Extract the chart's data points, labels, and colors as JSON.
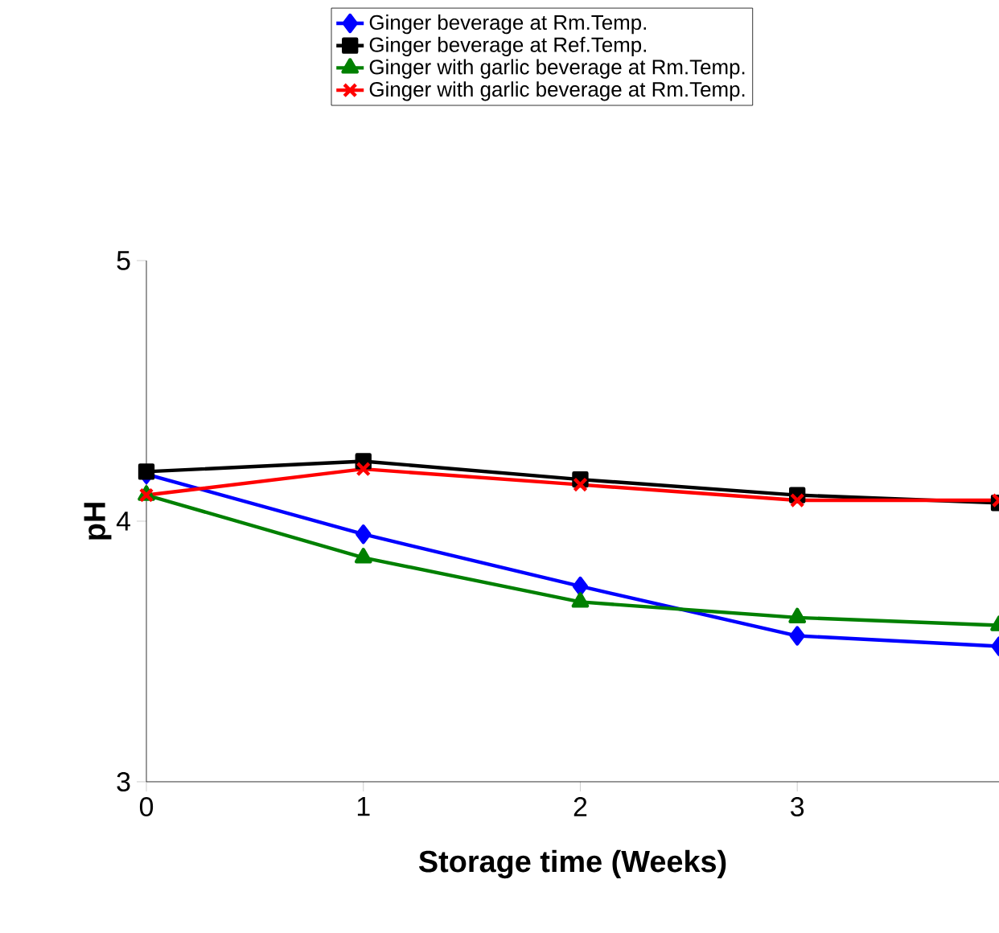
{
  "chart_data": {
    "type": "line",
    "xlabel": "Storage time (Weeks)",
    "ylabel": "pH",
    "x": [
      0,
      1,
      2,
      3,
      3.93
    ],
    "xlim": [
      0,
      3.93
    ],
    "xticks": [
      0,
      1,
      2,
      3
    ],
    "ylim": [
      3,
      5
    ],
    "yticks": [
      3,
      4,
      5
    ],
    "legend": "top",
    "grid": false,
    "series": [
      {
        "name": "Ginger beverage at Rm.Temp.",
        "color": "#0000ff",
        "marker": "diamond",
        "values": [
          4.18,
          3.95,
          3.75,
          3.56,
          3.52
        ]
      },
      {
        "name": "Ginger beverage at Ref.Temp.",
        "color": "#000000",
        "marker": "square",
        "values": [
          4.19,
          4.23,
          4.16,
          4.1,
          4.07
        ]
      },
      {
        "name": "Ginger with garlic beverage at Rm.Temp.",
        "color": "#008000",
        "marker": "triangle",
        "values": [
          4.1,
          3.86,
          3.69,
          3.63,
          3.6
        ]
      },
      {
        "name": "Ginger with garlic beverage at Rm.Temp.",
        "color": "#ff0000",
        "marker": "cross",
        "values": [
          4.1,
          4.2,
          4.14,
          4.08,
          4.08
        ]
      }
    ]
  }
}
